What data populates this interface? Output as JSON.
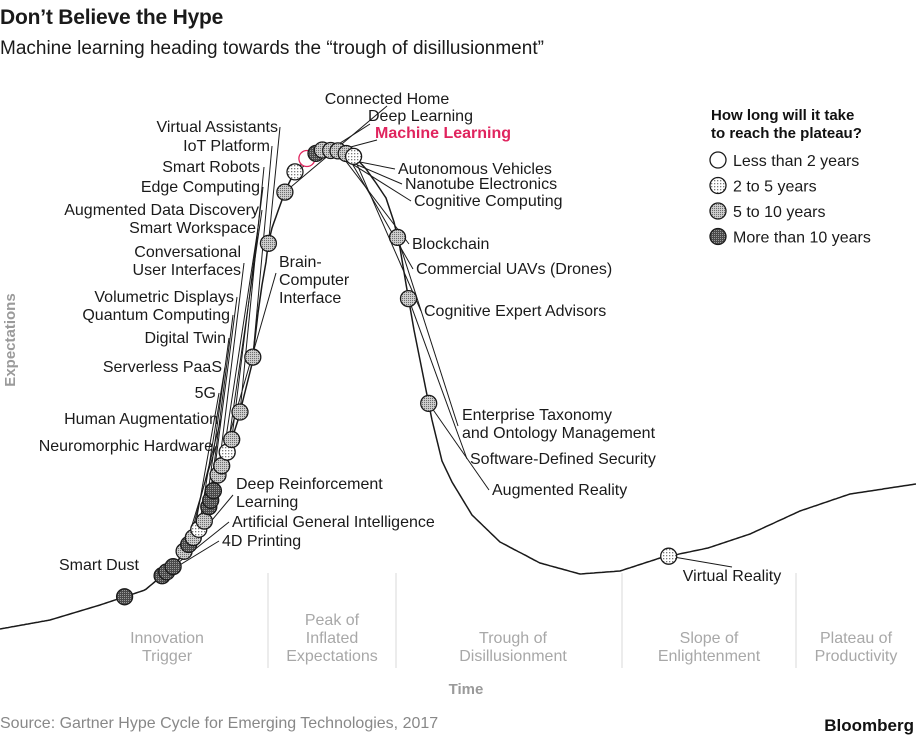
{
  "title": "Don’t Believe the Hype",
  "subtitle": "Machine learning heading towards the “trough of disillusionment”",
  "source": "Source: Gartner Hype Cycle for Emerging Technologies, 2017",
  "brand": "Bloomberg",
  "colors": {
    "highlight": "#e0245e",
    "curve": "#1a1a1a",
    "phase_text": "#a8a8a8",
    "divider": "#d9d9d9"
  },
  "chart_data": {
    "type": "scatter",
    "title": "Don’t Believe the Hype",
    "xlabel": "Time",
    "ylabel": "Expectations",
    "legend": {
      "title_line1": "How long will it take",
      "title_line2": "to reach the plateau?",
      "placement": "top-right",
      "entries": [
        {
          "key": "lt2",
          "label": "Less than 2 years"
        },
        {
          "key": "2to5",
          "label": "2 to 5 years"
        },
        {
          "key": "5to10",
          "label": "5 to 10 years"
        },
        {
          "key": "gt10",
          "label": "More than 10 years"
        }
      ]
    },
    "phases": [
      {
        "lines": [
          "Innovation",
          "Trigger"
        ]
      },
      {
        "lines": [
          "Peak of",
          "Inflated",
          "Expectations"
        ]
      },
      {
        "lines": [
          "Trough of",
          "Disillusionment"
        ]
      },
      {
        "lines": [
          "Slope of",
          "Enlightenment"
        ]
      },
      {
        "lines": [
          "Plateau of",
          "Productivity"
        ]
      }
    ],
    "points": [
      {
        "name": "Smart Dust",
        "t": 0.136,
        "category": "gt10"
      },
      {
        "name": "4D Printing",
        "t": 0.177,
        "category": "gt10"
      },
      {
        "name": "Artificial General Intelligence",
        "t": 0.182,
        "category": "gt10"
      },
      {
        "name": "Deep Reinforcement Learning",
        "t": 0.189,
        "category": "gt10"
      },
      {
        "name": "Neuromorphic Hardware",
        "t": 0.201,
        "category": "5to10"
      },
      {
        "name": "Human Augmentation",
        "t": 0.206,
        "category": "gt10"
      },
      {
        "name": "5G",
        "t": 0.211,
        "category": "5to10"
      },
      {
        "name": "Serverless PaaS",
        "t": 0.217,
        "category": "2to5"
      },
      {
        "name": "Digital Twin",
        "t": 0.223,
        "category": "5to10"
      },
      {
        "name": "Quantum Computing",
        "t": 0.228,
        "category": "gt10"
      },
      {
        "name": "Volumetric Displays",
        "t": 0.23,
        "category": "gt10"
      },
      {
        "name": "Brain-Computer Interface",
        "t": 0.233,
        "category": "gt10"
      },
      {
        "name": "Conversational User Interfaces",
        "t": 0.238,
        "category": "5to10"
      },
      {
        "name": "Smart Workspace",
        "t": 0.242,
        "category": "5to10"
      },
      {
        "name": "Augmented Data Discovery",
        "t": 0.248,
        "category": "2to5"
      },
      {
        "name": "Edge Computing",
        "t": 0.253,
        "category": "5to10"
      },
      {
        "name": "Smart Robots",
        "t": 0.262,
        "category": "5to10"
      },
      {
        "name": "IoT Platform",
        "t": 0.276,
        "category": "5to10"
      },
      {
        "name": "Virtual Assistants",
        "t": 0.293,
        "category": "5to10"
      },
      {
        "name": "Connected Home",
        "t": 0.311,
        "category": "5to10"
      },
      {
        "name": "Deep Learning",
        "t": 0.322,
        "category": "2to5"
      },
      {
        "name": "Machine Learning",
        "t": 0.335,
        "category": "2to5",
        "highlight": true
      },
      {
        "name": "Autonomous Vehicles",
        "t": 0.345,
        "category": "gt10"
      },
      {
        "name": "Nanotube Electronics",
        "t": 0.352,
        "category": "5to10"
      },
      {
        "name": "Cognitive Computing",
        "t": 0.361,
        "category": "5to10"
      },
      {
        "name": "Blockchain",
        "t": 0.369,
        "category": "5to10"
      },
      {
        "name": "Commercial UAVs (Drones)",
        "t": 0.378,
        "category": "5to10"
      },
      {
        "name": "Cognitive Expert Advisors",
        "t": 0.386,
        "category": "2to5"
      },
      {
        "name": "Enterprise Taxonomy and Ontology Management",
        "t": 0.434,
        "category": "5to10"
      },
      {
        "name": "Software-Defined Security",
        "t": 0.446,
        "category": "5to10"
      },
      {
        "name": "Augmented Reality",
        "t": 0.468,
        "category": "5to10"
      },
      {
        "name": "Virtual Reality",
        "t": 0.73,
        "category": "2to5"
      }
    ]
  }
}
